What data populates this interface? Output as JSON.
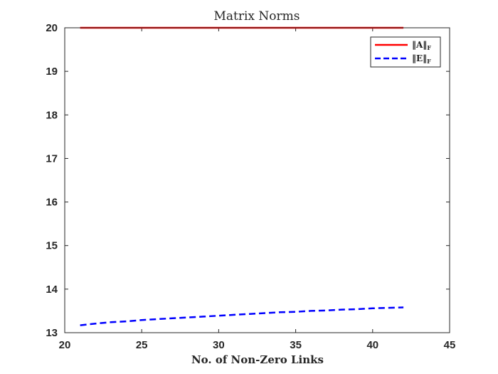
{
  "chart_data": {
    "type": "line",
    "title": "Matrix Norms",
    "xlabel": "No. of Non-Zero Links",
    "ylabel": "",
    "xlim": [
      20,
      45
    ],
    "ylim": [
      13,
      20
    ],
    "xticks": [
      20,
      25,
      30,
      35,
      40,
      45
    ],
    "yticks": [
      13,
      14,
      15,
      16,
      17,
      18,
      19,
      20
    ],
    "grid": false,
    "legend_position": "top-right",
    "x": [
      21,
      22,
      23,
      24,
      25,
      26,
      27,
      28,
      29,
      30,
      31,
      32,
      33,
      34,
      35,
      36,
      37,
      38,
      39,
      40,
      41,
      42
    ],
    "series": [
      {
        "name": "‖A‖F",
        "name_main": "‖A‖",
        "name_sub": "F",
        "color": "#ff0000",
        "dash": "solid",
        "values": [
          20,
          20,
          20,
          20,
          20,
          20,
          20,
          20,
          20,
          20,
          20,
          20,
          20,
          20,
          20,
          20,
          20,
          20,
          20,
          20,
          20,
          20
        ]
      },
      {
        "name": "‖E‖F",
        "name_main": "‖E‖",
        "name_sub": "F",
        "color": "#0000ff",
        "dash": "dashed",
        "values": [
          13.17,
          13.21,
          13.24,
          13.26,
          13.29,
          13.31,
          13.33,
          13.35,
          13.37,
          13.39,
          13.41,
          13.43,
          13.45,
          13.47,
          13.48,
          13.5,
          13.51,
          13.53,
          13.54,
          13.56,
          13.57,
          13.58
        ]
      }
    ]
  }
}
